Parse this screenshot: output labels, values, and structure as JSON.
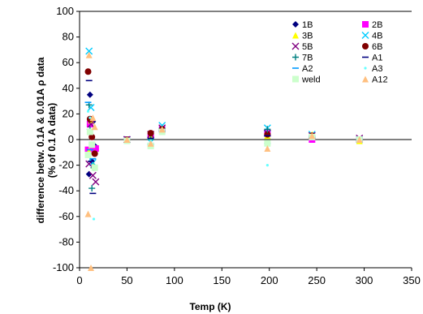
{
  "chart_data": {
    "type": "scatter",
    "title": "",
    "xlabel": "Temp (K)",
    "ylabel_line1": "difference betw. 0.1A & 0.01A ρ data",
    "ylabel_line2": "(% of 0.1 A data)",
    "xlim": [
      0,
      350
    ],
    "ylim": [
      -100,
      100
    ],
    "x_ticks": [
      0,
      50,
      100,
      150,
      200,
      250,
      300,
      350
    ],
    "y_ticks": [
      100,
      80,
      60,
      40,
      20,
      0,
      -20,
      -40,
      -60,
      -80,
      -100
    ],
    "grid": false,
    "legend_position": "top-right",
    "series": [
      {
        "name": "1B",
        "marker": "diamond",
        "color": "#000080",
        "points": [
          [
            10,
            -27
          ],
          [
            11,
            35
          ],
          [
            13,
            -17
          ],
          [
            14,
            14
          ],
          [
            16,
            -5
          ],
          [
            50,
            0
          ],
          [
            75,
            3
          ],
          [
            87,
            7
          ],
          [
            198,
            5
          ],
          [
            245,
            2
          ],
          [
            295,
            0
          ]
        ]
      },
      {
        "name": "2B",
        "marker": "square",
        "color": "#ff00ff",
        "points": [
          [
            9,
            -8
          ],
          [
            11,
            12
          ],
          [
            14,
            -8
          ],
          [
            17,
            -7
          ],
          [
            50,
            0
          ],
          [
            75,
            2
          ],
          [
            87,
            8
          ],
          [
            198,
            5
          ],
          [
            245,
            0
          ],
          [
            295,
            0
          ]
        ]
      },
      {
        "name": "3B",
        "marker": "triangle",
        "color": "#ffff00",
        "points": [
          [
            10,
            -9
          ],
          [
            12,
            15
          ],
          [
            15,
            -20
          ],
          [
            50,
            0
          ],
          [
            75,
            2
          ],
          [
            87,
            7
          ],
          [
            198,
            3
          ],
          [
            245,
            4
          ],
          [
            295,
            -1
          ]
        ]
      },
      {
        "name": "4B",
        "marker": "x",
        "color": "#00ccff",
        "points": [
          [
            10,
            69
          ],
          [
            12,
            25
          ],
          [
            14,
            -18
          ],
          [
            50,
            0
          ],
          [
            75,
            -2
          ],
          [
            87,
            11
          ],
          [
            198,
            9
          ],
          [
            245,
            4
          ],
          [
            295,
            0
          ]
        ]
      },
      {
        "name": "5B",
        "marker": "x",
        "color": "#800080",
        "points": [
          [
            10,
            -19
          ],
          [
            12,
            12
          ],
          [
            14,
            -28
          ],
          [
            17,
            -33
          ],
          [
            50,
            0
          ],
          [
            75,
            4
          ],
          [
            87,
            9
          ],
          [
            198,
            5
          ],
          [
            245,
            3
          ],
          [
            295,
            1
          ]
        ]
      },
      {
        "name": "6B",
        "marker": "circle",
        "color": "#800000",
        "points": [
          [
            9,
            53
          ],
          [
            11,
            16
          ],
          [
            13,
            2
          ],
          [
            16,
            -11
          ],
          [
            50,
            0
          ],
          [
            75,
            5
          ],
          [
            87,
            8
          ],
          [
            198,
            4
          ],
          [
            245,
            3
          ],
          [
            295,
            0
          ]
        ]
      },
      {
        "name": "7B",
        "marker": "plus",
        "color": "#008080",
        "points": [
          [
            10,
            27
          ],
          [
            11,
            8
          ],
          [
            13,
            -38
          ],
          [
            15,
            -22
          ],
          [
            50,
            0
          ],
          [
            75,
            0
          ],
          [
            87,
            6
          ],
          [
            198,
            8
          ],
          [
            245,
            2
          ],
          [
            295,
            0
          ]
        ]
      },
      {
        "name": "A1",
        "marker": "dash",
        "color": "#000080",
        "points": [
          [
            10,
            46
          ],
          [
            12,
            -17
          ],
          [
            14,
            -42
          ],
          [
            50,
            0
          ],
          [
            75,
            1
          ],
          [
            87,
            7
          ],
          [
            198,
            3
          ],
          [
            245,
            1
          ],
          [
            295,
            0
          ]
        ]
      },
      {
        "name": "A2",
        "marker": "dash",
        "color": "#0099ff",
        "points": [
          [
            9,
            29
          ],
          [
            11,
            -8
          ],
          [
            14,
            -15
          ],
          [
            50,
            1
          ],
          [
            75,
            -3
          ],
          [
            87,
            6
          ],
          [
            198,
            -3
          ],
          [
            245,
            3
          ],
          [
            295,
            0
          ]
        ]
      },
      {
        "name": "A3",
        "marker": "dot",
        "color": "#66ffff",
        "points": [
          [
            9,
            22
          ],
          [
            11,
            17
          ],
          [
            13,
            -5
          ],
          [
            15,
            -62
          ],
          [
            50,
            0
          ],
          [
            75,
            -1
          ],
          [
            87,
            5
          ],
          [
            198,
            -20
          ],
          [
            245,
            2
          ],
          [
            295,
            -1
          ]
        ]
      },
      {
        "name": "weld",
        "marker": "square",
        "color": "#ccffcc",
        "points": [
          [
            9,
            -12
          ],
          [
            11,
            6
          ],
          [
            13,
            -4
          ],
          [
            16,
            -22
          ],
          [
            50,
            -1
          ],
          [
            75,
            -5
          ],
          [
            87,
            6
          ],
          [
            198,
            -3
          ],
          [
            245,
            2
          ],
          [
            295,
            0
          ]
        ]
      },
      {
        "name": "A12",
        "marker": "triangle",
        "color": "#ffc080",
        "points": [
          [
            10,
            66
          ],
          [
            9,
            -58
          ],
          [
            12,
            -100
          ],
          [
            14,
            17
          ],
          [
            16,
            10
          ],
          [
            50,
            0
          ],
          [
            75,
            -3
          ],
          [
            87,
            8
          ],
          [
            198,
            -7
          ],
          [
            245,
            3
          ],
          [
            295,
            0
          ]
        ]
      }
    ]
  }
}
